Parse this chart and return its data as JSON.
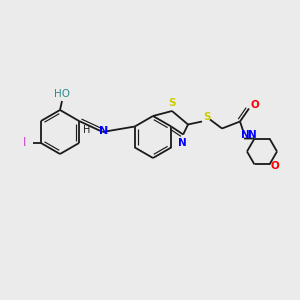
{
  "background_color": "#ebebeb",
  "bond_color": "#1a1a1a",
  "atom_colors": {
    "S": "#cccc00",
    "N": "#0000ff",
    "O": "#ff0000",
    "OH_O": "#ff0000",
    "HO": "#2e8b8b",
    "I": "#cc44cc",
    "H": "#1a1a1a"
  },
  "figsize": [
    3.0,
    3.0
  ],
  "dpi": 100
}
